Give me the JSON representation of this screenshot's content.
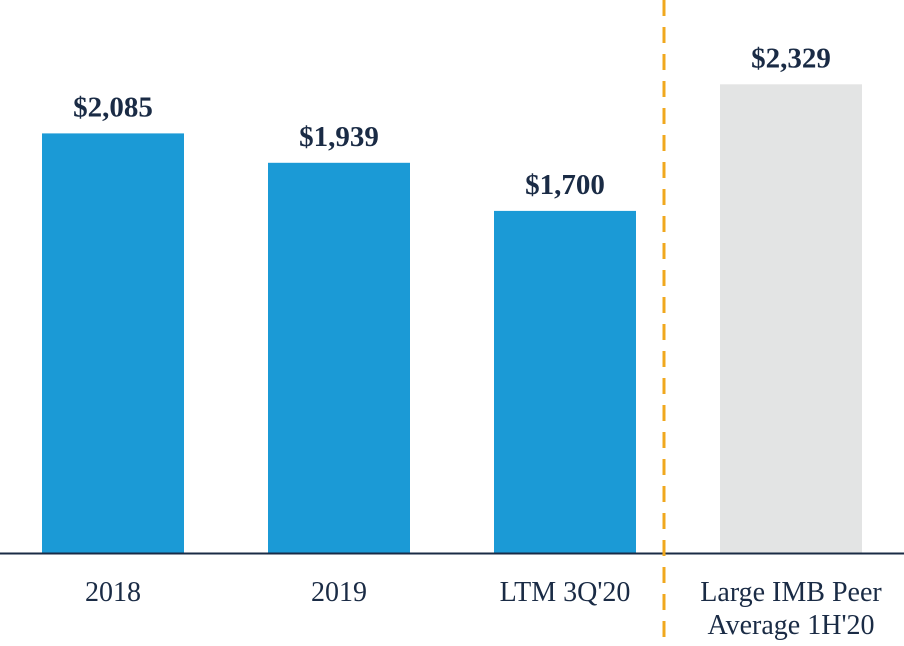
{
  "chart_data": {
    "type": "bar",
    "title": "",
    "xlabel": "",
    "ylabel": "",
    "ylim": [
      0,
      2400
    ],
    "grid": false,
    "categories": [
      [
        "2018"
      ],
      [
        "2019"
      ],
      [
        "LTM 3Q'20"
      ],
      [
        "Large IMB Peer",
        "Average 1H'20"
      ]
    ],
    "values": [
      2085,
      1939,
      1700,
      2329
    ],
    "value_labels": [
      "$2,085",
      "$1,939",
      "$1,700",
      "$2,329"
    ],
    "bar_colors": [
      "#1b9ad6",
      "#1b9ad6",
      "#1b9ad6",
      "#e3e4e4"
    ],
    "separator": {
      "after_category_index": 2,
      "style": "dashed",
      "color": "#f0a81e"
    },
    "axis_color": "#1a2b45",
    "label_color": "#1a2b45"
  }
}
